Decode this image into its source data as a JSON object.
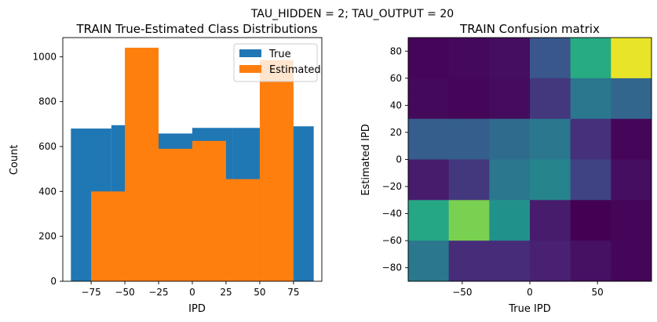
{
  "suptitle": "TAU_HIDDEN = 2; TAU_OUTPUT = 20",
  "colors": {
    "true": "#1f77b4",
    "estimated": "#ff7f0e",
    "axis": "#000000",
    "background": "#ffffff"
  },
  "chart_data": [
    {
      "type": "bar",
      "title": "TRAIN True-Estimated Class Distributions",
      "xlabel": "IPD",
      "ylabel": "Count",
      "xlim": [
        -96,
        96
      ],
      "ylim": [
        0,
        1085
      ],
      "xticks": [
        -75,
        -50,
        -25,
        0,
        25,
        50,
        75
      ],
      "xtick_labels": [
        "−75",
        "−50",
        "−25",
        "0",
        "25",
        "50",
        "75"
      ],
      "yticks": [
        0,
        200,
        400,
        600,
        800,
        1000
      ],
      "ytick_labels": [
        "0",
        "200",
        "400",
        "600",
        "800",
        "1000"
      ],
      "legend": {
        "location": "top-right",
        "entries": [
          "True",
          "Estimated"
        ]
      },
      "series": [
        {
          "name": "True",
          "bins": [
            {
              "x0": -90,
              "x1": -60,
              "value": 680
            },
            {
              "x0": -60,
              "x1": -30,
              "value": 695
            },
            {
              "x0": -30,
              "x1": 0,
              "value": 658
            },
            {
              "x0": 0,
              "x1": 30,
              "value": 683
            },
            {
              "x0": 30,
              "x1": 60,
              "value": 683
            },
            {
              "x0": 60,
              "x1": 90,
              "value": 690
            }
          ]
        },
        {
          "name": "Estimated",
          "bins": [
            {
              "x0": -75,
              "x1": -50,
              "value": 400
            },
            {
              "x0": -50,
              "x1": -25,
              "value": 1040
            },
            {
              "x0": -25,
              "x1": 0,
              "value": 590
            },
            {
              "x0": 0,
              "x1": 25,
              "value": 625
            },
            {
              "x0": 25,
              "x1": 50,
              "value": 455
            },
            {
              "x0": 50,
              "x1": 75,
              "value": 985
            }
          ]
        }
      ]
    },
    {
      "type": "heatmap",
      "title": "TRAIN Confusion matrix",
      "xlabel": "True IPD",
      "ylabel": "Estimated IPD",
      "xlim": [
        -90,
        90
      ],
      "ylim": [
        -90,
        90
      ],
      "xticks": [
        -50,
        0,
        50
      ],
      "xtick_labels": [
        "−50",
        "0",
        "50"
      ],
      "yticks": [
        80,
        60,
        40,
        20,
        0,
        -20,
        -40,
        -60,
        -80
      ],
      "ytick_labels": [
        "80",
        "60",
        "40",
        "20",
        "0",
        "−20",
        "−40",
        "−60",
        "−80"
      ],
      "x_bin_edges": [
        -90,
        -60,
        -30,
        0,
        30,
        60,
        90
      ],
      "y_bin_edges_top_to_bottom": [
        90,
        60,
        30,
        0,
        -30,
        -60,
        -90
      ],
      "colormap": "viridis",
      "values_top_to_bottom": [
        [
          0.02,
          0.03,
          0.05,
          0.27,
          0.62,
          0.97
        ],
        [
          0.03,
          0.02,
          0.04,
          0.18,
          0.4,
          0.33
        ],
        [
          0.3,
          0.3,
          0.35,
          0.4,
          0.16,
          0.02
        ],
        [
          0.1,
          0.18,
          0.4,
          0.45,
          0.21,
          0.05
        ],
        [
          0.6,
          0.8,
          0.5,
          0.1,
          0.0,
          0.02
        ],
        [
          0.4,
          0.15,
          0.15,
          0.12,
          0.06,
          0.02
        ]
      ]
    }
  ]
}
